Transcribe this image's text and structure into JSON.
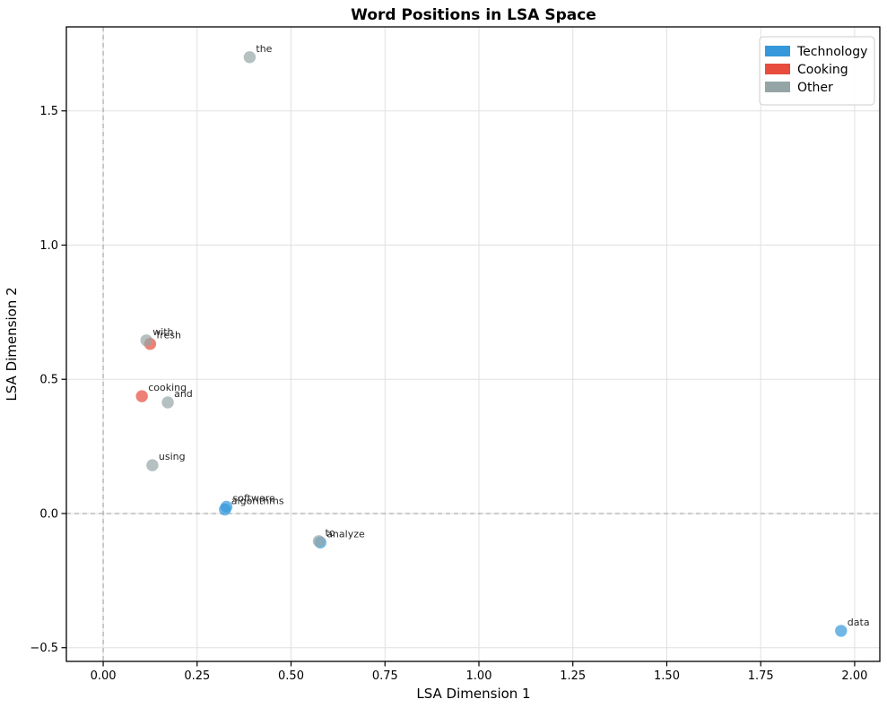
{
  "title": "Word Positions in LSA Space",
  "chart_data": {
    "type": "scatter",
    "title": "Word Positions in LSA Space",
    "xlabel": "LSA Dimension 1",
    "ylabel": "LSA Dimension 2",
    "xlim": [
      -0.098,
      2.067
    ],
    "ylim": [
      -0.551,
      1.813
    ],
    "xticks": [
      0.0,
      0.25,
      0.5,
      0.75,
      1.0,
      1.25,
      1.5,
      1.75,
      2.0
    ],
    "xtick_labels": [
      "0.00",
      "0.25",
      "0.50",
      "0.75",
      "1.00",
      "1.25",
      "1.50",
      "1.75",
      "2.00"
    ],
    "yticks": [
      -0.5,
      0.0,
      0.5,
      1.0,
      1.5
    ],
    "ytick_labels": [
      "−0.5",
      "0.0",
      "0.5",
      "1.0",
      "1.5"
    ],
    "grid": true,
    "grid_color": "#e0e0e0",
    "zero_line_color": "#999999",
    "zero_lines": {
      "x": 0.0,
      "y": 0.0,
      "style": "dashed"
    },
    "marker": {
      "radius_px": 6.7,
      "alpha": 0.7
    },
    "legend": {
      "position": "upper right",
      "entries": [
        {
          "label": "Technology",
          "color": "#3498db"
        },
        {
          "label": "Cooking",
          "color": "#e74c3c"
        },
        {
          "label": "Other",
          "color": "#95a5a6"
        }
      ]
    },
    "series": [
      {
        "name": "Technology",
        "color": "#3498db",
        "points": [
          {
            "word": "software",
            "x": 0.328,
            "y": 0.025
          },
          {
            "word": "algorithms",
            "x": 0.324,
            "y": 0.015
          },
          {
            "word": "analyze",
            "x": 0.578,
            "y": -0.108
          },
          {
            "word": "data",
            "x": 1.964,
            "y": -0.437
          }
        ]
      },
      {
        "name": "Cooking",
        "color": "#e74c3c",
        "points": [
          {
            "word": "fresh",
            "x": 0.125,
            "y": 0.632
          },
          {
            "word": "cooking",
            "x": 0.103,
            "y": 0.437
          }
        ]
      },
      {
        "name": "Other",
        "color": "#95a5a6",
        "points": [
          {
            "word": "the",
            "x": 0.39,
            "y": 1.7
          },
          {
            "word": "with",
            "x": 0.115,
            "y": 0.645
          },
          {
            "word": "and",
            "x": 0.172,
            "y": 0.414
          },
          {
            "word": "using",
            "x": 0.131,
            "y": 0.18
          },
          {
            "word": "to",
            "x": 0.574,
            "y": -0.103
          }
        ]
      }
    ]
  }
}
